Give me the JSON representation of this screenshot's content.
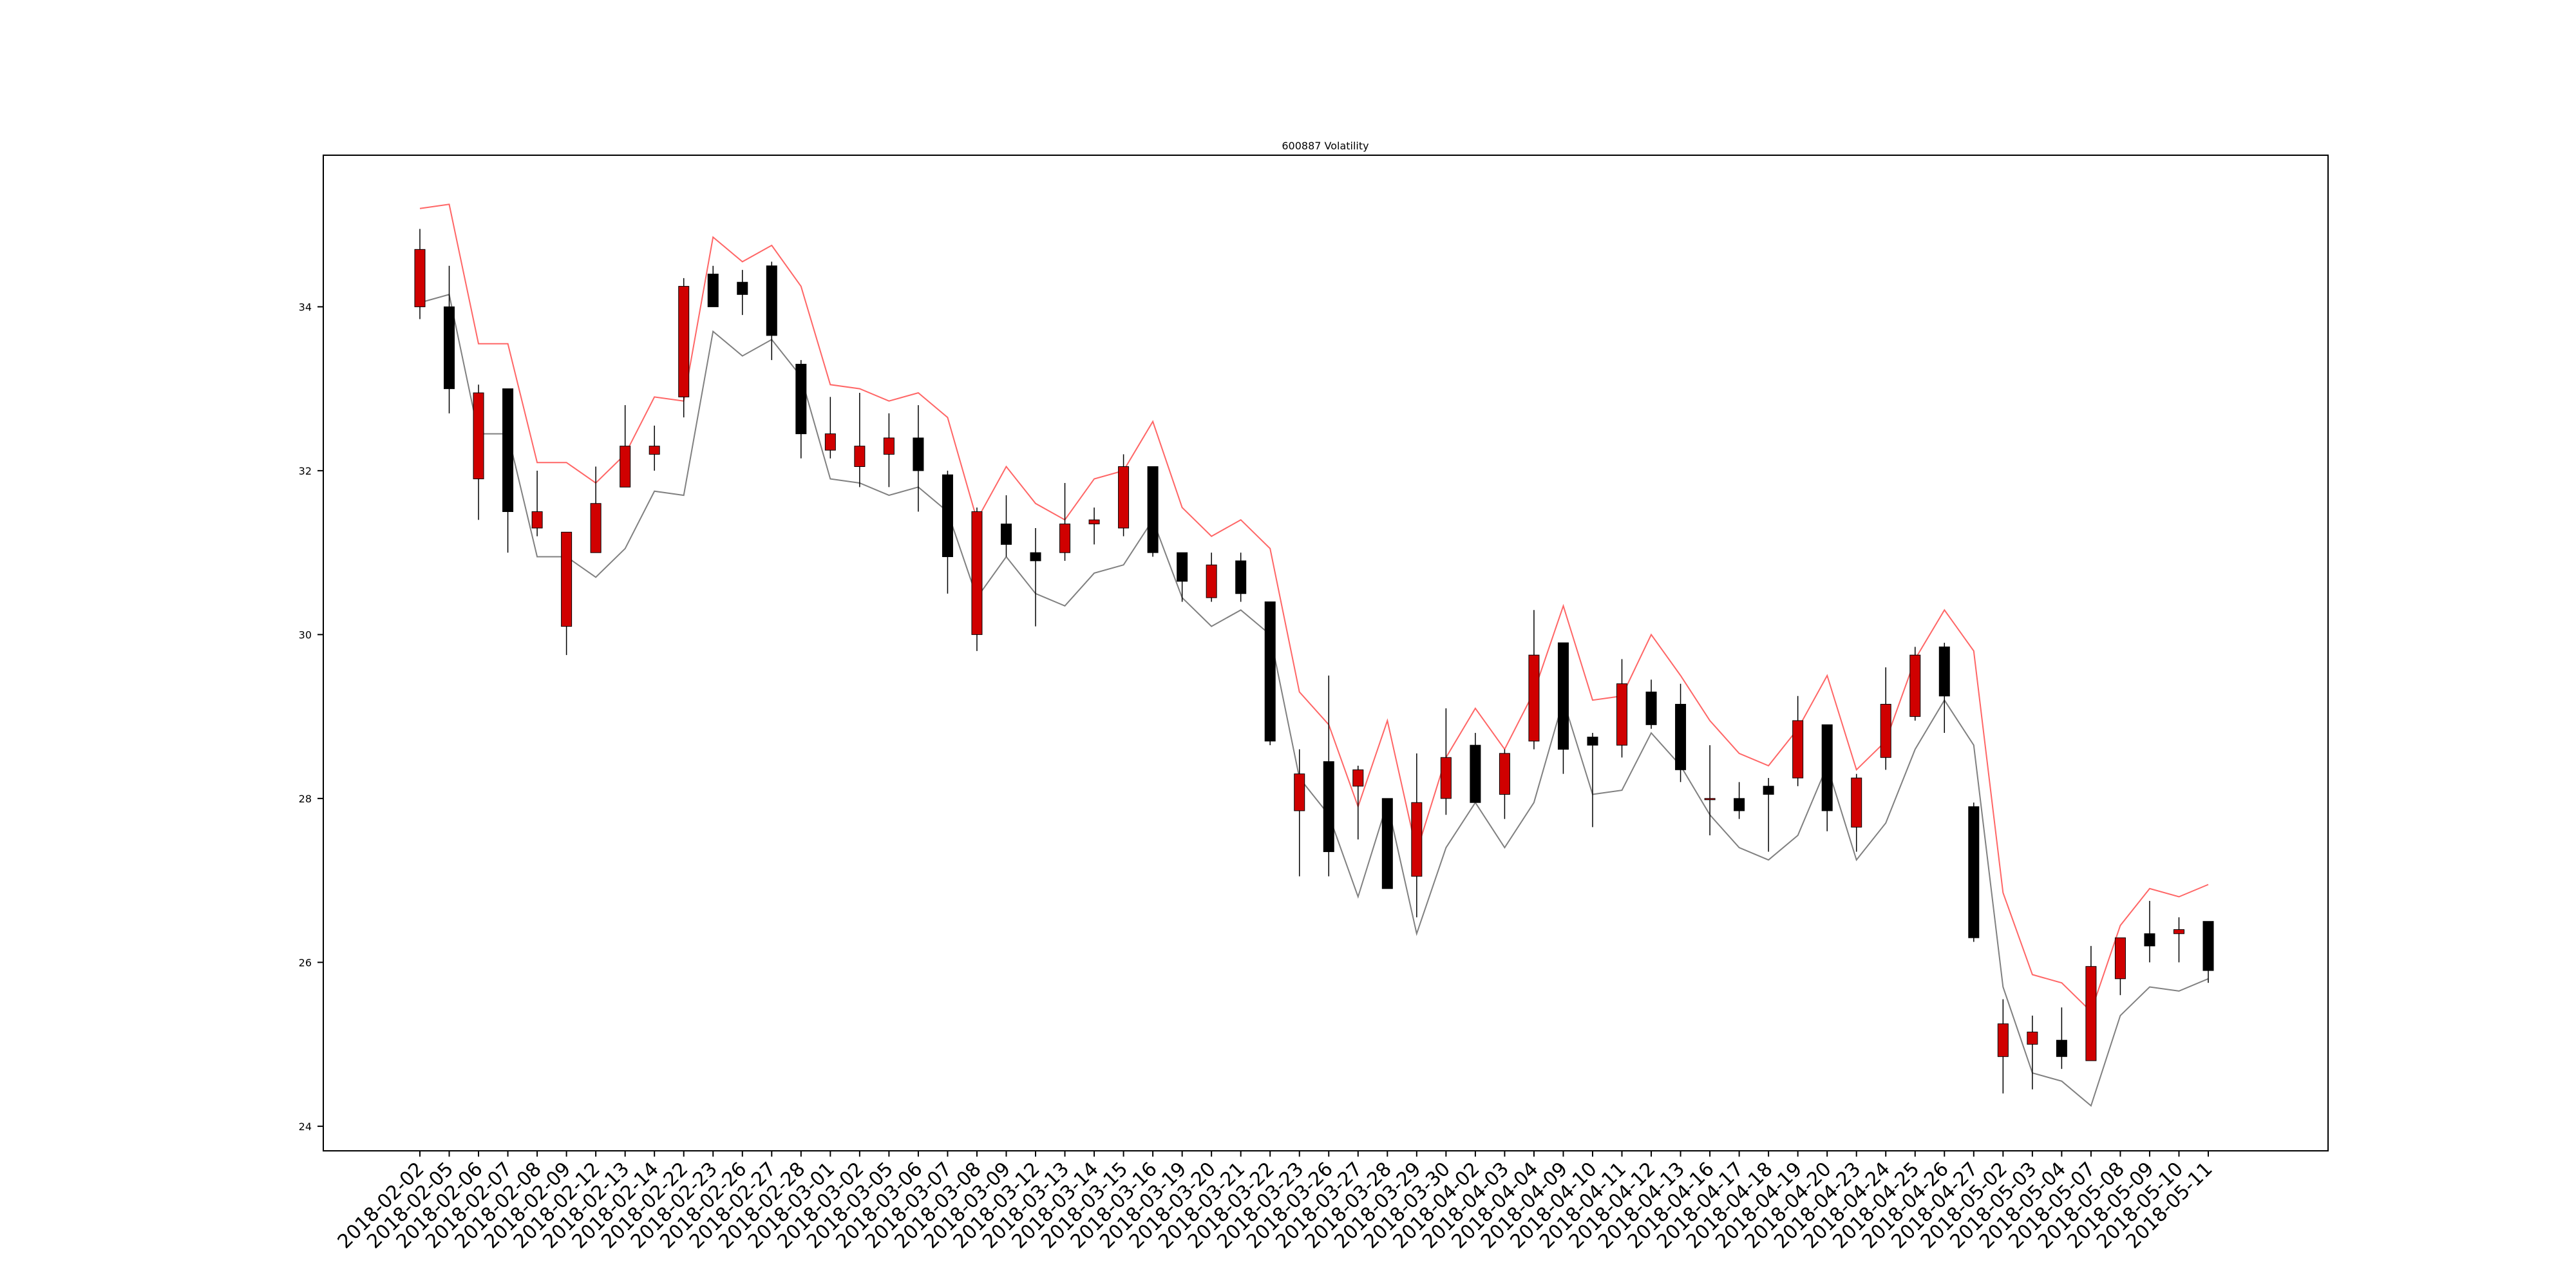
{
  "chart_data": {
    "type": "candlestick",
    "title": "600887 Volatility",
    "xlabel": "",
    "ylabel": "",
    "ylim": [
      23.7,
      35.85
    ],
    "yticks": [
      24,
      26,
      28,
      30,
      32,
      34
    ],
    "grid": false,
    "legend": "none",
    "colors": {
      "up": "#d00000",
      "down": "#000000",
      "upper_band": "#ff6666",
      "lower_band": "#808080",
      "wick": "#000000"
    },
    "categories": [
      "2018-02-02",
      "2018-02-05",
      "2018-02-06",
      "2018-02-07",
      "2018-02-08",
      "2018-02-09",
      "2018-02-12",
      "2018-02-13",
      "2018-02-14",
      "2018-02-22",
      "2018-02-23",
      "2018-02-26",
      "2018-02-27",
      "2018-02-28",
      "2018-03-01",
      "2018-03-02",
      "2018-03-05",
      "2018-03-06",
      "2018-03-07",
      "2018-03-08",
      "2018-03-09",
      "2018-03-12",
      "2018-03-13",
      "2018-03-14",
      "2018-03-15",
      "2018-03-16",
      "2018-03-19",
      "2018-03-20",
      "2018-03-21",
      "2018-03-22",
      "2018-03-23",
      "2018-03-26",
      "2018-03-27",
      "2018-03-28",
      "2018-03-29",
      "2018-03-30",
      "2018-04-02",
      "2018-04-03",
      "2018-04-04",
      "2018-04-09",
      "2018-04-10",
      "2018-04-11",
      "2018-04-12",
      "2018-04-13",
      "2018-04-16",
      "2018-04-17",
      "2018-04-18",
      "2018-04-19",
      "2018-04-20",
      "2018-04-23",
      "2018-04-24",
      "2018-04-25",
      "2018-04-26",
      "2018-04-27",
      "2018-05-02",
      "2018-05-03",
      "2018-05-04",
      "2018-05-07",
      "2018-05-08",
      "2018-05-09",
      "2018-05-10",
      "2018-05-11"
    ],
    "open": [
      34.0,
      34.0,
      31.9,
      33.0,
      31.3,
      30.1,
      31.0,
      31.8,
      32.2,
      32.9,
      34.4,
      34.3,
      34.5,
      33.3,
      32.25,
      32.05,
      32.2,
      32.4,
      31.95,
      30.0,
      31.35,
      31.0,
      31.0,
      31.35,
      31.3,
      32.05,
      31.0,
      30.45,
      30.9,
      30.4,
      27.85,
      28.45,
      28.15,
      28.0,
      27.05,
      28.0,
      28.65,
      28.05,
      28.7,
      29.9,
      28.75,
      28.65,
      29.3,
      29.15,
      28.0,
      28.0,
      28.15,
      28.25,
      28.9,
      27.65,
      28.5,
      29.0,
      29.85,
      27.9,
      24.85,
      25.0,
      25.05,
      24.8,
      25.8,
      26.35,
      26.35,
      26.5
    ],
    "close": [
      34.7,
      33.0,
      32.95,
      31.5,
      31.5,
      31.25,
      31.6,
      32.3,
      32.3,
      34.25,
      34.0,
      34.15,
      33.65,
      32.45,
      32.45,
      32.3,
      32.4,
      32.0,
      30.95,
      31.5,
      31.1,
      30.9,
      31.35,
      31.4,
      32.05,
      31.0,
      30.65,
      30.85,
      30.5,
      28.7,
      28.3,
      27.35,
      28.35,
      26.9,
      27.95,
      28.5,
      27.95,
      28.55,
      29.75,
      28.6,
      28.65,
      29.4,
      28.9,
      28.35,
      28.0,
      27.85,
      28.05,
      28.95,
      27.85,
      28.25,
      29.15,
      29.75,
      29.25,
      26.3,
      25.25,
      25.15,
      24.85,
      25.95,
      26.3,
      26.2,
      26.4,
      25.9
    ],
    "high": [
      34.95,
      34.5,
      33.05,
      33.0,
      32.0,
      31.25,
      32.05,
      32.8,
      32.55,
      34.35,
      34.5,
      34.45,
      34.55,
      33.35,
      32.9,
      32.95,
      32.7,
      32.8,
      32.0,
      31.55,
      31.7,
      31.3,
      31.85,
      31.55,
      32.2,
      32.05,
      31.0,
      31.0,
      31.0,
      30.4,
      28.6,
      29.5,
      28.4,
      28.0,
      28.55,
      29.1,
      28.8,
      28.6,
      30.3,
      29.9,
      28.8,
      29.7,
      29.45,
      29.4,
      28.65,
      28.2,
      28.25,
      29.25,
      28.9,
      28.3,
      29.6,
      29.85,
      29.9,
      27.95,
      25.55,
      25.35,
      25.45,
      26.2,
      26.3,
      26.75,
      26.55,
      26.5
    ],
    "low": [
      33.85,
      32.7,
      31.4,
      31.0,
      31.2,
      29.75,
      31.0,
      31.8,
      32.0,
      32.65,
      34.0,
      33.9,
      33.35,
      32.15,
      32.15,
      31.8,
      31.8,
      31.5,
      30.5,
      29.8,
      30.95,
      30.1,
      30.9,
      31.1,
      31.2,
      30.95,
      30.4,
      30.4,
      30.4,
      28.65,
      27.05,
      27.05,
      27.5,
      26.9,
      26.55,
      27.8,
      28.0,
      27.75,
      28.6,
      28.3,
      27.65,
      28.5,
      28.85,
      28.2,
      27.55,
      27.75,
      27.35,
      28.15,
      27.6,
      27.35,
      28.35,
      28.95,
      28.8,
      26.25,
      24.4,
      24.45,
      24.7,
      24.8,
      25.6,
      26.0,
      26.0,
      25.75
    ],
    "upper_band": [
      35.2,
      35.25,
      33.55,
      33.55,
      32.1,
      32.1,
      31.85,
      32.2,
      32.9,
      32.85,
      34.85,
      34.55,
      34.75,
      34.25,
      33.05,
      33.0,
      32.85,
      32.95,
      32.65,
      31.4,
      32.05,
      31.6,
      31.4,
      31.9,
      32.0,
      32.6,
      31.55,
      31.2,
      31.4,
      31.05,
      29.3,
      28.9,
      27.9,
      28.95,
      27.35,
      28.5,
      29.1,
      28.6,
      29.3,
      30.35,
      29.2,
      29.25,
      30.0,
      29.5,
      28.95,
      28.55,
      28.4,
      28.85,
      29.5,
      28.35,
      28.7,
      29.7,
      30.3,
      29.8,
      26.85,
      25.85,
      25.75,
      25.4,
      26.45,
      26.9,
      26.8,
      26.95
    ],
    "lower_band": [
      34.05,
      34.15,
      32.45,
      32.45,
      30.95,
      30.95,
      30.7,
      31.05,
      31.75,
      31.7,
      33.7,
      33.4,
      33.6,
      33.15,
      31.9,
      31.85,
      31.7,
      31.8,
      31.5,
      30.45,
      30.95,
      30.5,
      30.35,
      30.75,
      30.85,
      31.4,
      30.45,
      30.1,
      30.3,
      30.0,
      28.25,
      27.8,
      26.8,
      27.95,
      26.35,
      27.4,
      27.95,
      27.4,
      27.95,
      29.2,
      28.05,
      28.1,
      28.8,
      28.4,
      27.8,
      27.4,
      27.25,
      27.55,
      28.4,
      27.25,
      27.7,
      28.6,
      29.2,
      28.65,
      25.7,
      24.65,
      24.55,
      24.25,
      25.35,
      25.7,
      25.65,
      25.8
    ]
  }
}
